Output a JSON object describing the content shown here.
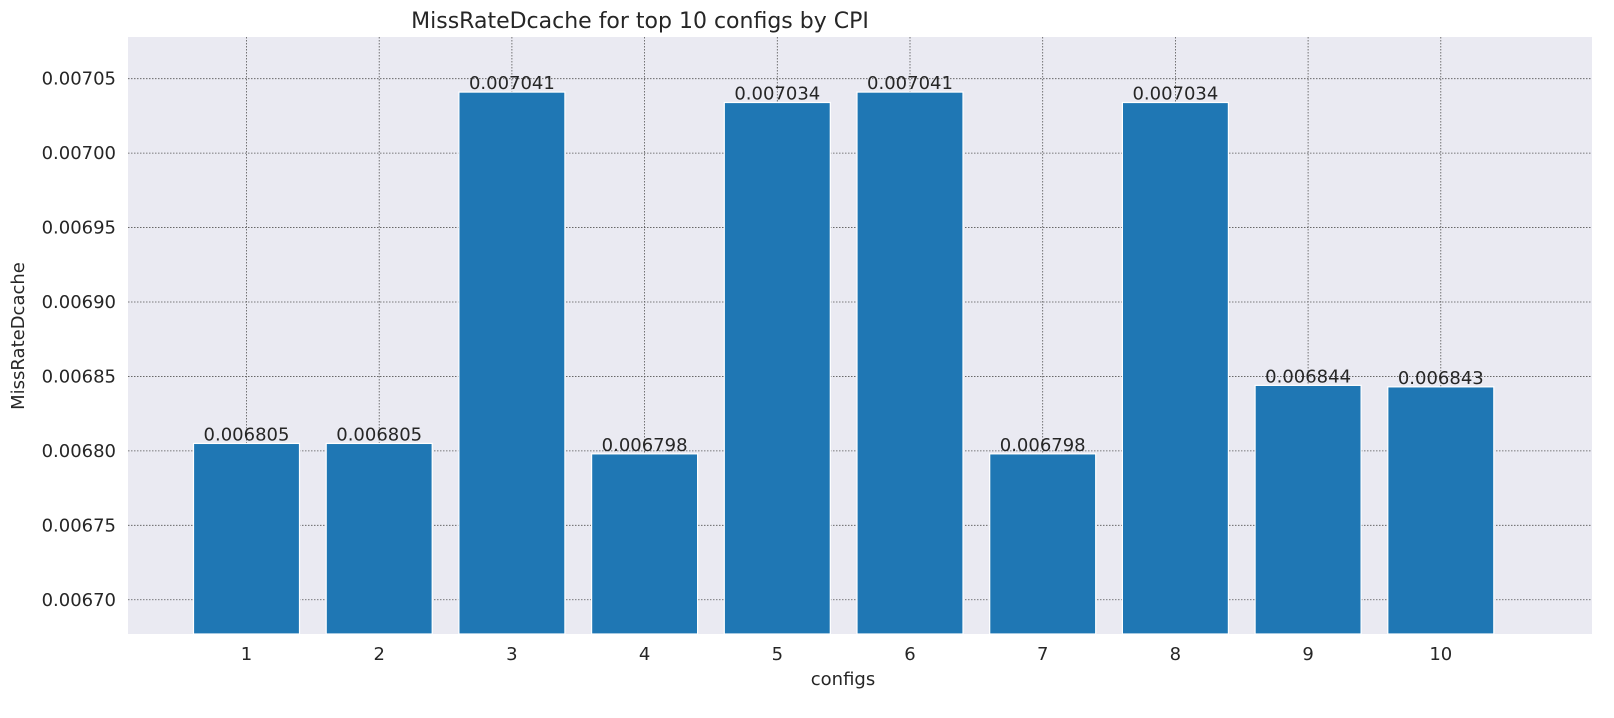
{
  "chart_data": {
    "type": "bar",
    "title": "MissRateDcache for top 10 configs by CPI",
    "xlabel": "configs",
    "ylabel": "MissRateDcache",
    "categories": [
      "1",
      "2",
      "3",
      "4",
      "5",
      "6",
      "7",
      "8",
      "9",
      "10"
    ],
    "values": [
      0.006805,
      0.006805,
      0.007041,
      0.006798,
      0.007034,
      0.007041,
      0.006798,
      0.007034,
      0.006844,
      0.006843
    ],
    "data_labels": [
      "0.006805",
      "0.006805",
      "0.007041",
      "0.006798",
      "0.007034",
      "0.007041",
      "0.006798",
      "0.007034",
      "0.006844",
      "0.006843"
    ],
    "ylim": [
      0.006677,
      0.007078
    ],
    "yticks": [
      0.0067,
      0.00675,
      0.0068,
      0.00685,
      0.0069,
      0.00695,
      0.007,
      0.00705
    ],
    "ytick_labels": [
      "0.00670",
      "0.00675",
      "0.00680",
      "0.00685",
      "0.00690",
      "0.00695",
      "0.00700",
      "0.00705"
    ],
    "grid": true,
    "bar_color": "#1f77b4",
    "background_color": "#eaeaf2"
  }
}
